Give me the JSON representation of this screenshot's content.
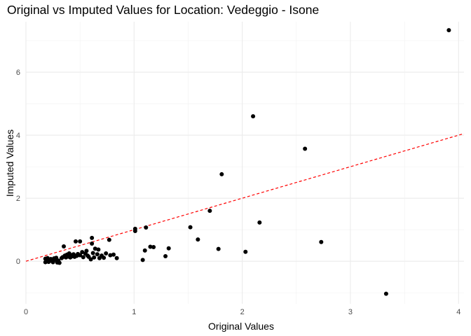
{
  "chart_data": {
    "type": "scatter",
    "title": "Original vs Imputed Values for Location: Vedeggio - Isone",
    "xlabel": "Original Values",
    "ylabel": "Imputed Values",
    "xlim": [
      0,
      4.05
    ],
    "ylim": [
      -1.35,
      7.6
    ],
    "xticks": [
      0,
      1,
      2,
      3,
      4
    ],
    "yticks": [
      0,
      2,
      4,
      6
    ],
    "x_tick_labels": [
      "0",
      "1",
      "2",
      "3",
      "4"
    ],
    "y_tick_labels": [
      "0",
      "2",
      "4",
      "6"
    ],
    "grid": true,
    "point_color": "#000000",
    "reference_line": {
      "slope": 1,
      "intercept": 0,
      "color": "#ff0000",
      "style": "dashed"
    },
    "points": [
      {
        "x": 0.18,
        "y": 0.08
      },
      {
        "x": 0.18,
        "y": -0.03
      },
      {
        "x": 0.19,
        "y": 0.03
      },
      {
        "x": 0.2,
        "y": 0.1
      },
      {
        "x": 0.21,
        "y": -0.02
      },
      {
        "x": 0.22,
        "y": 0.04
      },
      {
        "x": 0.23,
        "y": 0.07
      },
      {
        "x": 0.24,
        "y": 0.01
      },
      {
        "x": 0.25,
        "y": -0.03
      },
      {
        "x": 0.26,
        "y": 0.09
      },
      {
        "x": 0.27,
        "y": 0.05
      },
      {
        "x": 0.28,
        "y": 0.11
      },
      {
        "x": 0.29,
        "y": -0.04
      },
      {
        "x": 0.3,
        "y": 0.02
      },
      {
        "x": 0.31,
        "y": -0.05
      },
      {
        "x": 0.33,
        "y": 0.1
      },
      {
        "x": 0.34,
        "y": 0.13
      },
      {
        "x": 0.35,
        "y": 0.47
      },
      {
        "x": 0.36,
        "y": 0.18
      },
      {
        "x": 0.37,
        "y": 0.12
      },
      {
        "x": 0.38,
        "y": 0.21
      },
      {
        "x": 0.39,
        "y": 0.15
      },
      {
        "x": 0.4,
        "y": 0.25
      },
      {
        "x": 0.41,
        "y": 0.12
      },
      {
        "x": 0.42,
        "y": 0.19
      },
      {
        "x": 0.43,
        "y": 0.16
      },
      {
        "x": 0.44,
        "y": 0.22
      },
      {
        "x": 0.45,
        "y": 0.14
      },
      {
        "x": 0.46,
        "y": 0.63
      },
      {
        "x": 0.47,
        "y": 0.17
      },
      {
        "x": 0.48,
        "y": 0.23
      },
      {
        "x": 0.5,
        "y": 0.63
      },
      {
        "x": 0.5,
        "y": 0.19
      },
      {
        "x": 0.52,
        "y": 0.29
      },
      {
        "x": 0.53,
        "y": 0.13
      },
      {
        "x": 0.55,
        "y": 0.24
      },
      {
        "x": 0.56,
        "y": 0.33
      },
      {
        "x": 0.57,
        "y": 0.18
      },
      {
        "x": 0.58,
        "y": 0.14
      },
      {
        "x": 0.6,
        "y": 0.06
      },
      {
        "x": 0.61,
        "y": 0.74
      },
      {
        "x": 0.61,
        "y": 0.56
      },
      {
        "x": 0.62,
        "y": 0.26
      },
      {
        "x": 0.63,
        "y": 0.12
      },
      {
        "x": 0.64,
        "y": 0.4
      },
      {
        "x": 0.66,
        "y": 0.22
      },
      {
        "x": 0.67,
        "y": 0.37
      },
      {
        "x": 0.68,
        "y": 0.1
      },
      {
        "x": 0.7,
        "y": 0.18
      },
      {
        "x": 0.72,
        "y": 0.11
      },
      {
        "x": 0.74,
        "y": 0.25
      },
      {
        "x": 0.77,
        "y": 0.68
      },
      {
        "x": 0.78,
        "y": 0.19
      },
      {
        "x": 0.81,
        "y": 0.21
      },
      {
        "x": 0.84,
        "y": 0.1
      },
      {
        "x": 1.01,
        "y": 1.03
      },
      {
        "x": 1.01,
        "y": 0.96
      },
      {
        "x": 1.08,
        "y": 0.04
      },
      {
        "x": 1.1,
        "y": 0.34
      },
      {
        "x": 1.11,
        "y": 1.07
      },
      {
        "x": 1.15,
        "y": 0.46
      },
      {
        "x": 1.18,
        "y": 0.45
      },
      {
        "x": 1.29,
        "y": 0.16
      },
      {
        "x": 1.32,
        "y": 0.41
      },
      {
        "x": 1.52,
        "y": 1.08
      },
      {
        "x": 1.59,
        "y": 0.69
      },
      {
        "x": 1.7,
        "y": 1.6
      },
      {
        "x": 1.78,
        "y": 0.39
      },
      {
        "x": 1.81,
        "y": 2.76
      },
      {
        "x": 2.03,
        "y": 0.3
      },
      {
        "x": 2.1,
        "y": 4.6
      },
      {
        "x": 2.16,
        "y": 1.23
      },
      {
        "x": 2.58,
        "y": 3.57
      },
      {
        "x": 2.73,
        "y": 0.61
      },
      {
        "x": 3.33,
        "y": -1.03
      },
      {
        "x": 3.91,
        "y": 7.33
      }
    ]
  }
}
